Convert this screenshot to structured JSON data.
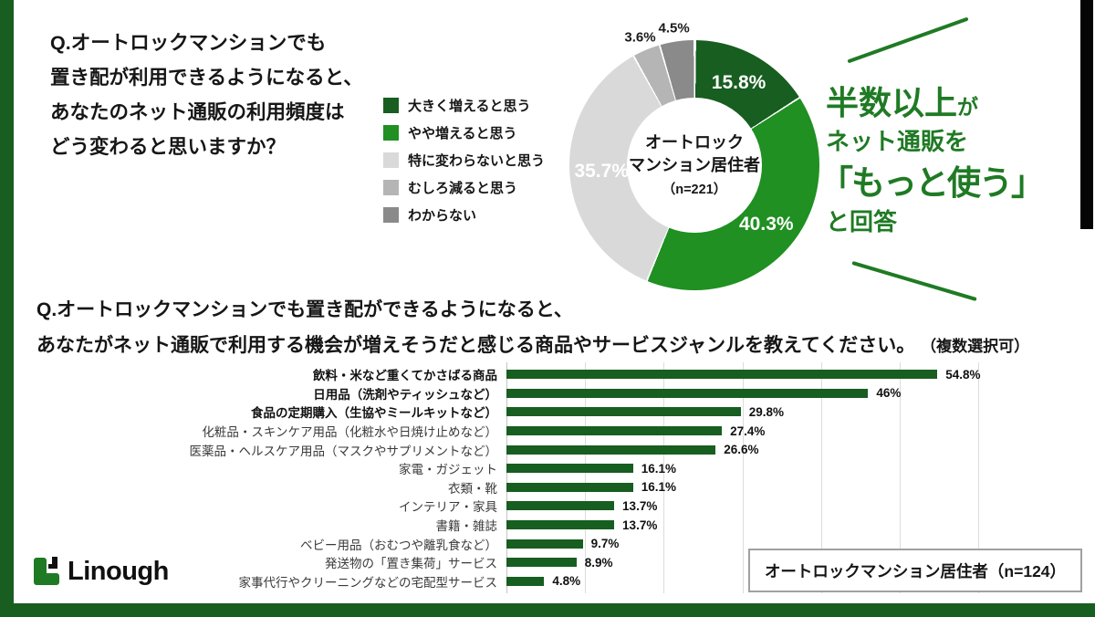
{
  "colors": {
    "brand_dark_green": "#175e20",
    "mid_green": "#1f9021",
    "light_gray": "#d9d9d9",
    "mid_gray": "#b5b5b5",
    "dark_gray": "#8a8a8a",
    "callout_green": "#1f7a24",
    "right_bar_black": "#050505"
  },
  "q1": {
    "lines": [
      "Q.オートロックマンションでも",
      "置き配が利用できるようになると、",
      "あなたのネット通販の利用頻度は",
      "どう変わると思いますか？"
    ]
  },
  "callout": {
    "headline_big": "半数以上",
    "headline_small": "が",
    "line2": "ネット通販を",
    "line3": "「もっと使う」",
    "line4": "と回答"
  },
  "q2": {
    "line1": "Q.オートロックマンションでも置き配ができるようになると、",
    "line2": "あなたがネット通販で利用する機会が増えそうだと感じる商品やサービスジャンルを教えてください。",
    "line2_note": "（複数選択可）"
  },
  "logo": {
    "text": "Linough"
  },
  "chart_data": [
    {
      "type": "pie",
      "subtype": "donut",
      "start_angle_deg": 0,
      "direction": "clockwise",
      "center_label": [
        "オートロック",
        "マンション居住者",
        "（n=221）"
      ],
      "slices": [
        {
          "label": "大きく増えると思う",
          "value": 15.8,
          "display": "15.8%",
          "color": "#175e20",
          "label_color": "#ffffff",
          "label_inside": true
        },
        {
          "label": "やや増えると思う",
          "value": 40.3,
          "display": "40.3%",
          "color": "#1f9021",
          "label_color": "#ffffff",
          "label_inside": true
        },
        {
          "label": "特に変わらないと思う",
          "value": 35.7,
          "display": "35.7%",
          "color": "#d9d9d9",
          "label_color": "#ffffff",
          "label_inside": true
        },
        {
          "label": "むしろ減ると思う",
          "value": 3.6,
          "display": "3.6%",
          "color": "#b5b5b5",
          "label_color": "#1a1a1a",
          "label_inside": false
        },
        {
          "label": "わからない",
          "value": 4.5,
          "display": "4.5%",
          "color": "#8a8a8a",
          "label_color": "#1a1a1a",
          "label_inside": false
        }
      ]
    },
    {
      "type": "bar",
      "orientation": "horizontal",
      "xlim": [
        0,
        60
      ],
      "gridline_step": 10,
      "grid": true,
      "bar_color": "#175e20",
      "note": "オートロックマンション居住者（n=124）",
      "rows": [
        {
          "label": "飲料・米など重くてかさばる商品",
          "value": 54.8,
          "display": "54.8%",
          "bold": true
        },
        {
          "label": "日用品（洗剤やティッシュなど）",
          "value": 46,
          "display": "46%",
          "bold": true
        },
        {
          "label": "食品の定期購入（生協やミールキットなど）",
          "value": 29.8,
          "display": "29.8%",
          "bold": true
        },
        {
          "label": "化粧品・スキンケア用品（化粧水や日焼け止めなど）",
          "value": 27.4,
          "display": "27.4%",
          "bold": false
        },
        {
          "label": "医薬品・ヘルスケア用品（マスクやサプリメントなど）",
          "value": 26.6,
          "display": "26.6%",
          "bold": false
        },
        {
          "label": "家電・ガジェット",
          "value": 16.1,
          "display": "16.1%",
          "bold": false
        },
        {
          "label": "衣類・靴",
          "value": 16.1,
          "display": "16.1%",
          "bold": false
        },
        {
          "label": "インテリア・家具",
          "value": 13.7,
          "display": "13.7%",
          "bold": false
        },
        {
          "label": "書籍・雑誌",
          "value": 13.7,
          "display": "13.7%",
          "bold": false
        },
        {
          "label": "ベビー用品（おむつや離乳食など）",
          "value": 9.7,
          "display": "9.7%",
          "bold": false
        },
        {
          "label": "発送物の「置き集荷」サービス",
          "value": 8.9,
          "display": "8.9%",
          "bold": false
        },
        {
          "label": "家事代行やクリーニングなどの宅配型サービス",
          "value": 4.8,
          "display": "4.8%",
          "bold": false
        }
      ]
    }
  ]
}
